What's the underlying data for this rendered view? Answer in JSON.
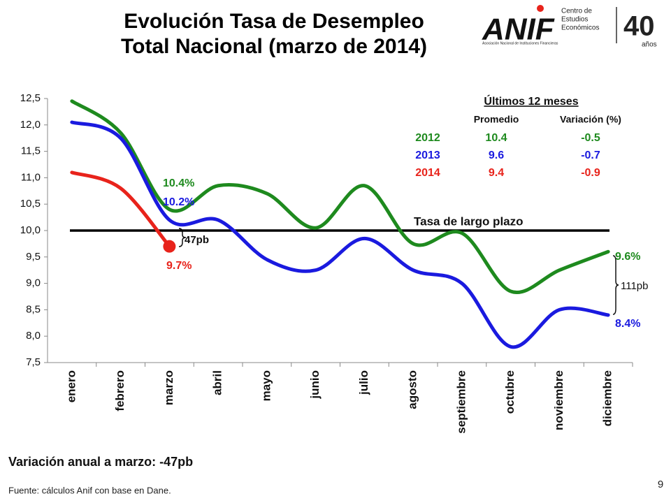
{
  "chart_data": {
    "type": "line",
    "title": [
      "Evolución Tasa de Desempleo",
      "Total Nacional (marzo de 2014)"
    ],
    "categories": [
      "enero",
      "febrero",
      "marzo",
      "abril",
      "mayo",
      "junio",
      "julio",
      "agosto",
      "septiembre",
      "octubre",
      "noviembre",
      "diciembre"
    ],
    "series": [
      {
        "name": "2012",
        "color": "#1e8a1e",
        "values": [
          12.45,
          11.85,
          10.4,
          10.85,
          10.7,
          10.05,
          10.85,
          9.75,
          9.95,
          8.85,
          9.25,
          9.6
        ],
        "value_labels": [
          null,
          null,
          "10.4%",
          null,
          null,
          null,
          null,
          null,
          null,
          null,
          null,
          "9.6%"
        ]
      },
      {
        "name": "2013",
        "color": "#1a1adf",
        "values": [
          12.05,
          11.75,
          10.2,
          10.2,
          9.45,
          9.25,
          9.85,
          9.25,
          9.0,
          7.8,
          8.5,
          8.4
        ],
        "value_labels": [
          null,
          null,
          "10.2%",
          null,
          null,
          null,
          null,
          null,
          null,
          null,
          null,
          "8.4%"
        ]
      },
      {
        "name": "2014",
        "color": "#e8231b",
        "values": [
          11.1,
          10.8,
          9.7,
          null,
          null,
          null,
          null,
          null,
          null,
          null,
          null,
          null
        ],
        "value_labels": [
          null,
          null,
          "9.7%",
          null,
          null,
          null,
          null,
          null,
          null,
          null,
          null,
          null
        ]
      }
    ],
    "ylim": [
      7.5,
      12.5
    ],
    "yticks": [
      {
        "value": 7.5,
        "label": "7,5"
      },
      {
        "value": 8,
        "label": "8,0"
      },
      {
        "value": 8.5,
        "label": "8,5"
      },
      {
        "value": 9,
        "label": "9,0"
      },
      {
        "value": 9.5,
        "label": "9,5"
      },
      {
        "value": 10,
        "label": "10,0"
      },
      {
        "value": 10.5,
        "label": "10,5"
      },
      {
        "value": 11,
        "label": "11,0"
      },
      {
        "value": 11.5,
        "label": "11,5"
      },
      {
        "value": 12,
        "label": "12,0"
      },
      {
        "value": 12.5,
        "label": "12,5"
      }
    ],
    "reference": {
      "value": 10,
      "label": "Tasa de largo plazo"
    },
    "annotations": [
      "47pb",
      "111pb"
    ],
    "table": {
      "title": "Últimos 12 meses",
      "headers": [
        "Promedio",
        "Variación (%)"
      ],
      "rows": [
        {
          "promedio": 10.4,
          "variacion": -0.5
        },
        {
          "promedio": 9.6,
          "variacion": -0.7
        },
        {
          "promedio": 9.4,
          "variacion": -0.9
        }
      ]
    }
  },
  "logo": {
    "brand": "ANIF",
    "unit": [
      "Centro de",
      "Estudios",
      "Económicos"
    ],
    "tagline": "Asociación Nacional de Instituciones Financieras",
    "anniversary": "40",
    "anniversary_sub": "años"
  },
  "footer": {
    "note": "Variación anual a marzo: -47pb",
    "source": "Fuente: cálculos Anif con base en Dane.",
    "page": "9"
  }
}
